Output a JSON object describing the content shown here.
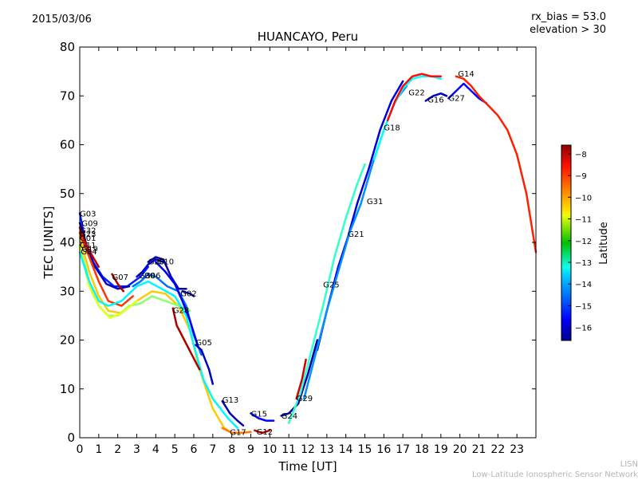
{
  "header": {
    "date": "2015/03/06",
    "rx_bias": "rx_bias = 53.0",
    "elevation": "elevation > 30"
  },
  "footer": {
    "short": "LISN",
    "long": "Low-Latitude Ionospheric Sensor Network"
  },
  "chart_data": {
    "type": "line",
    "title": "HUANCAYO, Peru",
    "xlabel": "Time [UT]",
    "ylabel": "TEC [UNITS]",
    "xlim": [
      0,
      24
    ],
    "ylim": [
      0,
      80
    ],
    "xticks": [
      0,
      1,
      2,
      3,
      4,
      5,
      6,
      7,
      8,
      9,
      10,
      11,
      12,
      13,
      14,
      15,
      16,
      17,
      18,
      19,
      20,
      21,
      22,
      23
    ],
    "yticks": [
      0,
      10,
      20,
      30,
      40,
      50,
      60,
      70,
      80
    ],
    "grid": false,
    "colorbar": {
      "label": "Latitude",
      "range": [
        -16.6,
        -7.6
      ],
      "ticks": [
        -8,
        -9,
        -10,
        -11,
        -12,
        -13,
        -14,
        -15,
        -16
      ],
      "tick_labels": [
        "−8",
        "−9",
        "−10",
        "−11",
        "−12",
        "−13",
        "−14",
        "−15",
        "−16"
      ],
      "colormap": "jet",
      "placement": "right"
    },
    "series": [
      {
        "name": "G03",
        "lat": -15.2,
        "label_at": [
          0.0,
          46
        ],
        "points": [
          [
            0,
            46
          ],
          [
            0.3,
            40
          ],
          [
            0.7,
            36
          ],
          [
            1.2,
            33
          ],
          [
            1.8,
            31
          ],
          [
            2.5,
            31
          ],
          [
            3.2,
            33
          ],
          [
            3.6,
            35
          ]
        ]
      },
      {
        "name": "G09",
        "lat": -16.0,
        "label_at": [
          0.1,
          44
        ],
        "points": [
          [
            0,
            44
          ],
          [
            0.4,
            39
          ],
          [
            0.8,
            35
          ],
          [
            1.4,
            31.5
          ],
          [
            2.0,
            30.5
          ],
          [
            2.6,
            31
          ]
        ]
      },
      {
        "name": "G32",
        "lat": -8.2,
        "label_at": [
          0.0,
          42.5
        ],
        "points": [
          [
            0,
            43
          ],
          [
            0.4,
            39
          ],
          [
            1.0,
            35
          ]
        ]
      },
      {
        "name": "G23",
        "lat": -9.2,
        "label_at": [
          0.0,
          41.8
        ],
        "points": [
          [
            0,
            42
          ],
          [
            0.5,
            37
          ],
          [
            1.0,
            32
          ],
          [
            1.5,
            28
          ],
          [
            2.2,
            27
          ],
          [
            2.8,
            29
          ]
        ]
      },
      {
        "name": "G01",
        "lat": -10.5,
        "label_at": [
          0.0,
          41
        ],
        "points": [
          [
            0,
            41
          ],
          [
            0.5,
            34
          ],
          [
            1.0,
            29
          ],
          [
            1.5,
            26
          ],
          [
            2.2,
            25.5
          ],
          [
            3.0,
            28
          ],
          [
            3.8,
            30
          ],
          [
            4.5,
            29.5
          ],
          [
            5.2,
            27
          ],
          [
            5.8,
            22
          ],
          [
            6.3,
            14
          ],
          [
            7.0,
            6
          ],
          [
            7.6,
            2
          ],
          [
            8.0,
            1
          ],
          [
            8.5,
            1
          ]
        ]
      },
      {
        "name": "G11",
        "lat": -12.0,
        "label_at": [
          0.0,
          39.5
        ],
        "points": [
          [
            0,
            39.5
          ],
          [
            0.5,
            32
          ],
          [
            1.0,
            27
          ],
          [
            1.5,
            25
          ],
          [
            2.0,
            25
          ],
          [
            2.6,
            27
          ],
          [
            3.2,
            27.5
          ],
          [
            3.8,
            29
          ],
          [
            4.5,
            28
          ],
          [
            5.2,
            27
          ],
          [
            5.8,
            26
          ]
        ]
      },
      {
        "name": "G19",
        "lat": -11.2,
        "label_at": [
          0.1,
          38.8
        ],
        "points": [
          [
            0,
            39
          ],
          [
            0.5,
            31
          ],
          [
            1.0,
            27
          ],
          [
            1.6,
            24.5
          ],
          [
            2.2,
            25.5
          ],
          [
            3.0,
            28
          ]
        ]
      },
      {
        "name": "G04",
        "lat": -13.3,
        "label_at": [
          0.05,
          38.2
        ],
        "points": [
          [
            0,
            38
          ],
          [
            0.5,
            32
          ],
          [
            1.0,
            28
          ],
          [
            1.5,
            27
          ],
          [
            2.2,
            28
          ],
          [
            3.0,
            31
          ],
          [
            3.6,
            32
          ],
          [
            4.3,
            30.5
          ],
          [
            5.0,
            29
          ],
          [
            5.6,
            25
          ],
          [
            6.0,
            19
          ],
          [
            6.5,
            12
          ],
          [
            7.0,
            8
          ],
          [
            7.8,
            4
          ],
          [
            8.3,
            2
          ]
        ]
      },
      {
        "name": "G07",
        "lat": -8.0,
        "label_at": [
          1.7,
          33
        ],
        "points": [
          [
            1.7,
            33.5
          ],
          [
            2.0,
            31.5
          ],
          [
            2.3,
            30
          ]
        ]
      },
      {
        "name": "G30",
        "lat": -15.8,
        "label_at": [
          3.1,
          33.3
        ],
        "points": [
          [
            3.0,
            33
          ],
          [
            3.3,
            34
          ],
          [
            3.6,
            35.5
          ],
          [
            4.0,
            36.5
          ],
          [
            4.4,
            36
          ]
        ]
      },
      {
        "name": "G06",
        "lat": -14.5,
        "label_at": [
          3.4,
          33.3
        ],
        "points": [
          [
            2.8,
            31
          ],
          [
            3.2,
            32
          ],
          [
            3.6,
            33.5
          ],
          [
            4.0,
            33
          ],
          [
            4.6,
            31
          ],
          [
            5.2,
            30
          ],
          [
            5.6,
            27
          ],
          [
            6.0,
            21
          ],
          [
            6.4,
            17
          ]
        ]
      },
      {
        "name": "G20",
        "lat": -16.2,
        "label_at": [
          3.6,
          36.2
        ],
        "points": [
          [
            3.6,
            36
          ],
          [
            4.0,
            37
          ],
          [
            4.4,
            36.5
          ],
          [
            4.8,
            33
          ],
          [
            5.2,
            30.5
          ],
          [
            5.6,
            30.5
          ]
        ]
      },
      {
        "name": "G10",
        "lat": -15.6,
        "label_at": [
          4.1,
          36.2
        ],
        "points": [
          [
            4.0,
            36
          ],
          [
            4.5,
            34
          ],
          [
            5.0,
            31.5
          ],
          [
            5.4,
            28
          ],
          [
            5.8,
            24
          ],
          [
            6.2,
            19
          ]
        ]
      },
      {
        "name": "G02",
        "lat": -16.3,
        "label_at": [
          5.3,
          29.6
        ],
        "points": [
          [
            5.4,
            30
          ],
          [
            5.8,
            29.5
          ],
          [
            6.0,
            29
          ]
        ]
      },
      {
        "name": "G28",
        "lat": -8.0,
        "label_at": [
          4.9,
          26.2
        ],
        "points": [
          [
            4.9,
            26.5
          ],
          [
            5.1,
            23
          ],
          [
            5.5,
            20
          ],
          [
            5.9,
            17
          ],
          [
            6.3,
            14
          ]
        ]
      },
      {
        "name": "G05",
        "lat": -16.0,
        "label_at": [
          6.1,
          19.6
        ],
        "points": [
          [
            6.1,
            19
          ],
          [
            6.4,
            18
          ],
          [
            6.8,
            14
          ],
          [
            7.0,
            11
          ]
        ]
      },
      {
        "name": "G13",
        "lat": -16.2,
        "label_at": [
          7.5,
          7.8
        ],
        "points": [
          [
            7.5,
            7.5
          ],
          [
            7.9,
            5
          ],
          [
            8.3,
            3.5
          ],
          [
            8.6,
            2.5
          ]
        ]
      },
      {
        "name": "G17",
        "lat": -9.8,
        "label_at": [
          7.9,
          1.2
        ],
        "points": [
          [
            7.5,
            2
          ],
          [
            8.0,
            1
          ],
          [
            8.5,
            1
          ],
          [
            9.0,
            1.2
          ]
        ]
      },
      {
        "name": "G15",
        "lat": -15.5,
        "label_at": [
          9.0,
          5.0
        ],
        "points": [
          [
            9.0,
            5
          ],
          [
            9.4,
            4
          ],
          [
            9.8,
            3.5
          ],
          [
            10.2,
            3.5
          ]
        ]
      },
      {
        "name": "G12",
        "lat": -8.2,
        "label_at": [
          9.3,
          1.3
        ],
        "points": [
          [
            9.2,
            1.5
          ],
          [
            9.6,
            1
          ],
          [
            10.0,
            1.5
          ]
        ]
      },
      {
        "name": "G24",
        "lat": -16.3,
        "label_at": [
          10.6,
          4.6
        ],
        "points": [
          [
            10.6,
            4.5
          ],
          [
            11.0,
            5
          ],
          [
            11.5,
            7
          ],
          [
            12.0,
            13
          ],
          [
            12.5,
            20
          ]
        ]
      },
      {
        "name": "G29",
        "lat": -8.3,
        "label_at": [
          11.4,
          8.2
        ],
        "points": [
          [
            11.4,
            8
          ],
          [
            11.7,
            12
          ],
          [
            11.9,
            16
          ]
        ]
      },
      {
        "name": "G25",
        "lat": -12.8,
        "label_at": [
          12.8,
          31.4
        ],
        "points": [
          [
            11.0,
            3
          ],
          [
            11.6,
            9
          ],
          [
            12.2,
            18
          ],
          [
            12.8,
            27
          ],
          [
            13.4,
            37
          ],
          [
            14.0,
            45
          ],
          [
            14.6,
            52
          ],
          [
            15.0,
            56
          ]
        ]
      },
      {
        "name": "G21",
        "lat": -15.8,
        "label_at": [
          14.1,
          41.8
        ],
        "points": [
          [
            12.5,
            18
          ],
          [
            13.0,
            26
          ],
          [
            13.6,
            35
          ],
          [
            14.1,
            41
          ],
          [
            14.6,
            48
          ],
          [
            15.2,
            55
          ],
          [
            15.8,
            63
          ],
          [
            16.4,
            69
          ],
          [
            17.0,
            73
          ]
        ]
      },
      {
        "name": "G31",
        "lat": -14.2,
        "label_at": [
          15.1,
          48.5
        ],
        "points": [
          [
            11.8,
            8
          ],
          [
            12.4,
            17
          ],
          [
            13.0,
            26
          ],
          [
            13.6,
            34
          ],
          [
            14.2,
            42
          ],
          [
            14.8,
            48
          ],
          [
            15.4,
            56
          ],
          [
            16.0,
            63
          ],
          [
            16.6,
            69
          ],
          [
            17.2,
            72
          ]
        ]
      },
      {
        "name": "G18",
        "lat": -13.2,
        "label_at": [
          16.0,
          63.6
        ],
        "points": [
          [
            15.5,
            57
          ],
          [
            16.0,
            63
          ],
          [
            16.5,
            68
          ],
          [
            17.0,
            71.5
          ],
          [
            17.5,
            73.5
          ],
          [
            18.0,
            74
          ],
          [
            18.5,
            74
          ],
          [
            19.0,
            73.5
          ]
        ]
      },
      {
        "name": "G22",
        "lat": -8.8,
        "label_at": [
          17.3,
          70.8
        ],
        "points": [
          [
            16.2,
            65
          ],
          [
            16.6,
            69
          ],
          [
            17.0,
            72
          ],
          [
            17.5,
            74
          ],
          [
            18.0,
            74.5
          ],
          [
            18.5,
            74
          ],
          [
            19.0,
            74
          ]
        ]
      },
      {
        "name": "G16",
        "lat": -16.0,
        "label_at": [
          18.3,
          69.3
        ],
        "points": [
          [
            18.2,
            69
          ],
          [
            18.6,
            70
          ],
          [
            19.0,
            70.5
          ],
          [
            19.3,
            70
          ]
        ]
      },
      {
        "name": "G27",
        "lat": -15.4,
        "label_at": [
          19.4,
          69.6
        ],
        "points": [
          [
            19.4,
            69.5
          ],
          [
            19.8,
            71
          ],
          [
            20.2,
            72.5
          ],
          [
            20.6,
            71
          ],
          [
            21.0,
            69.5
          ],
          [
            21.4,
            68.5
          ]
        ]
      },
      {
        "name": "G14",
        "lat": -9.0,
        "label_at": [
          19.9,
          74.6
        ],
        "points": [
          [
            19.8,
            74
          ],
          [
            20.2,
            73.5
          ],
          [
            20.6,
            72
          ],
          [
            21.0,
            70
          ],
          [
            21.5,
            68
          ],
          [
            22.0,
            66
          ],
          [
            22.5,
            63
          ],
          [
            23.0,
            58
          ],
          [
            23.5,
            50
          ],
          [
            24.0,
            38
          ]
        ]
      }
    ],
    "annotations": [
      "G03",
      "G09",
      "G32",
      "G23",
      "G01",
      "G11",
      "G19",
      "G04",
      "G07",
      "G30",
      "G06",
      "G20",
      "G10",
      "G02",
      "G28",
      "G05",
      "G13",
      "G17",
      "G15",
      "G12",
      "G24",
      "G29",
      "G25",
      "G21",
      "G31",
      "G18",
      "G22",
      "G16",
      "G27",
      "G14"
    ]
  }
}
